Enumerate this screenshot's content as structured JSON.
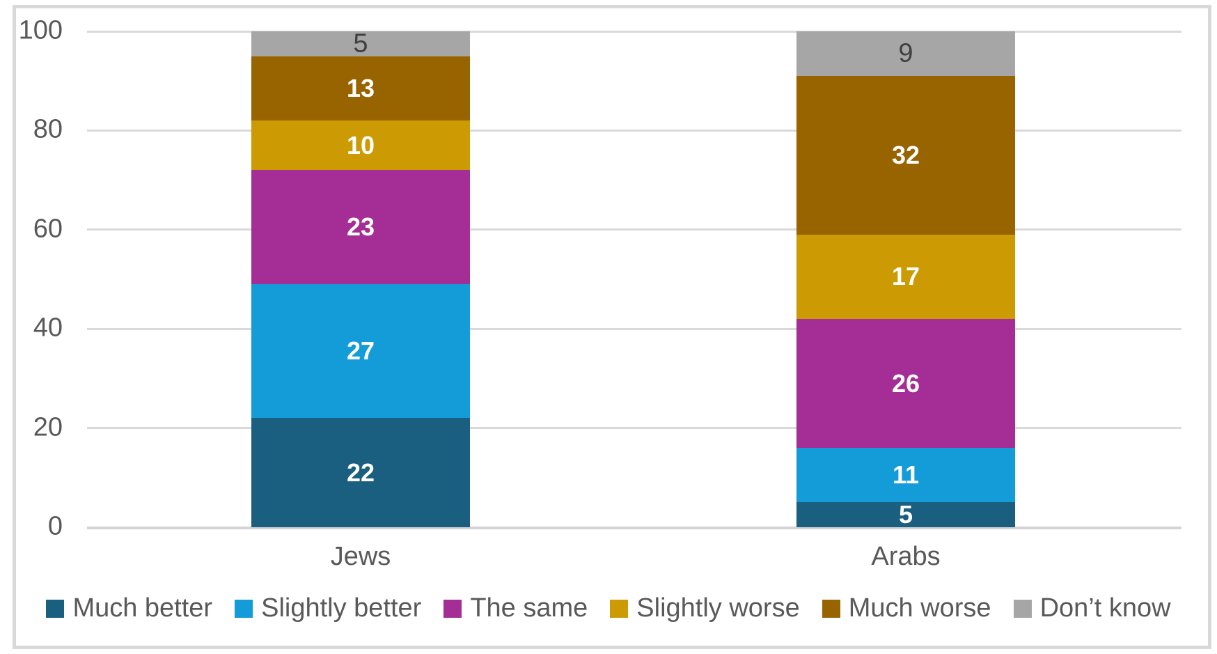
{
  "chart_data": {
    "type": "bar",
    "subtype": "stacked-column",
    "title": "",
    "categories": [
      "Jews",
      "Arabs"
    ],
    "series": [
      {
        "name": "Much better",
        "color": "#1A5E80",
        "values": [
          22,
          5
        ],
        "label_style": "light"
      },
      {
        "name": "Slightly better",
        "color": "#139CD8",
        "values": [
          27,
          11
        ],
        "label_style": "light"
      },
      {
        "name": "The same",
        "color": "#A42D96",
        "values": [
          23,
          26
        ],
        "label_style": "light"
      },
      {
        "name": "Slightly worse",
        "color": "#CC9A02",
        "values": [
          10,
          17
        ],
        "label_style": "light"
      },
      {
        "name": "Much worse",
        "color": "#986400",
        "values": [
          13,
          32
        ],
        "label_style": "light"
      },
      {
        "name": "Don’t know",
        "color": "#A6A6A6",
        "values": [
          5,
          9
        ],
        "label_style": "dark"
      }
    ],
    "ylim": [
      0,
      100
    ],
    "yticks": [
      0,
      20,
      40,
      60,
      80,
      100
    ],
    "grid": true,
    "legend_position": "bottom",
    "colors": {
      "gridline": "#D9D9D9",
      "axis_text": "#595959",
      "data_label_light": "#FFFFFF",
      "data_label_dark": "#404040",
      "frame_border": "#D9D9D9"
    }
  }
}
